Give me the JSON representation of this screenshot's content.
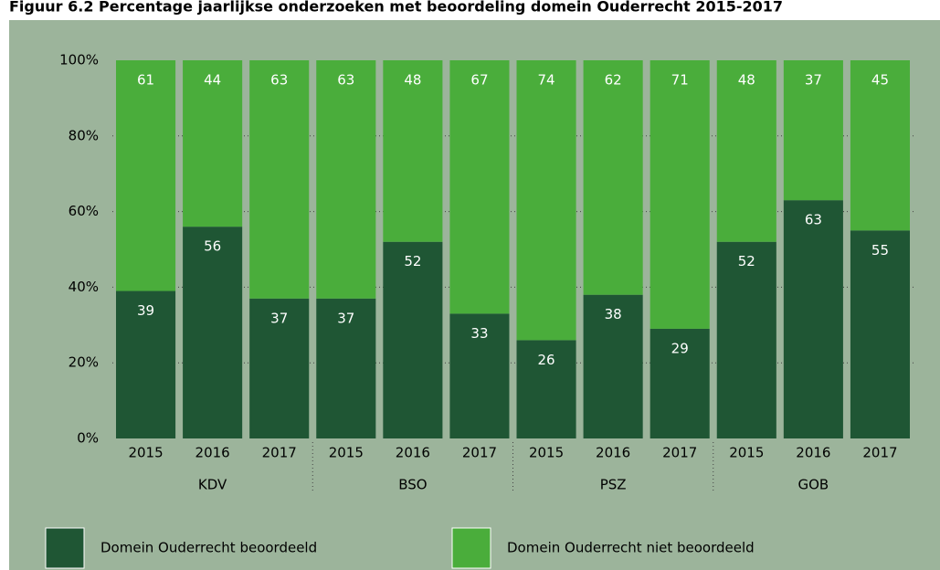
{
  "chart_data": {
    "type": "stacked_bar",
    "title": "Figuur 6.2 Percentage jaarlijkse onderzoeken met beoordeling domein Ouderrecht 2015-2017",
    "categories": [
      "2015",
      "2016",
      "2017",
      "2015",
      "2016",
      "2017",
      "2015",
      "2016",
      "2017",
      "2015",
      "2016",
      "2017"
    ],
    "groups": [
      "KDV",
      "BSO",
      "PSZ",
      "GOB"
    ],
    "series": [
      {
        "name": "Domein Ouderrecht beoordeeld",
        "color": "#1f5634",
        "values": [
          39,
          56,
          37,
          37,
          52,
          33,
          26,
          38,
          29,
          52,
          63,
          55
        ]
      },
      {
        "name": "Domein Ouderrecht niet beoordeeld",
        "color": "#4aad3b",
        "values": [
          61,
          44,
          63,
          63,
          48,
          67,
          74,
          62,
          71,
          48,
          37,
          45
        ]
      }
    ],
    "ylim": [
      0,
      100
    ],
    "yticks": [
      {
        "value": 0,
        "label": "0%"
      },
      {
        "value": 20,
        "label": "20%"
      },
      {
        "value": 40,
        "label": "40%"
      },
      {
        "value": 60,
        "label": "60%"
      },
      {
        "value": 80,
        "label": "80%"
      },
      {
        "value": 100,
        "label": "100%"
      }
    ],
    "grid": true,
    "legend": "bottom"
  }
}
